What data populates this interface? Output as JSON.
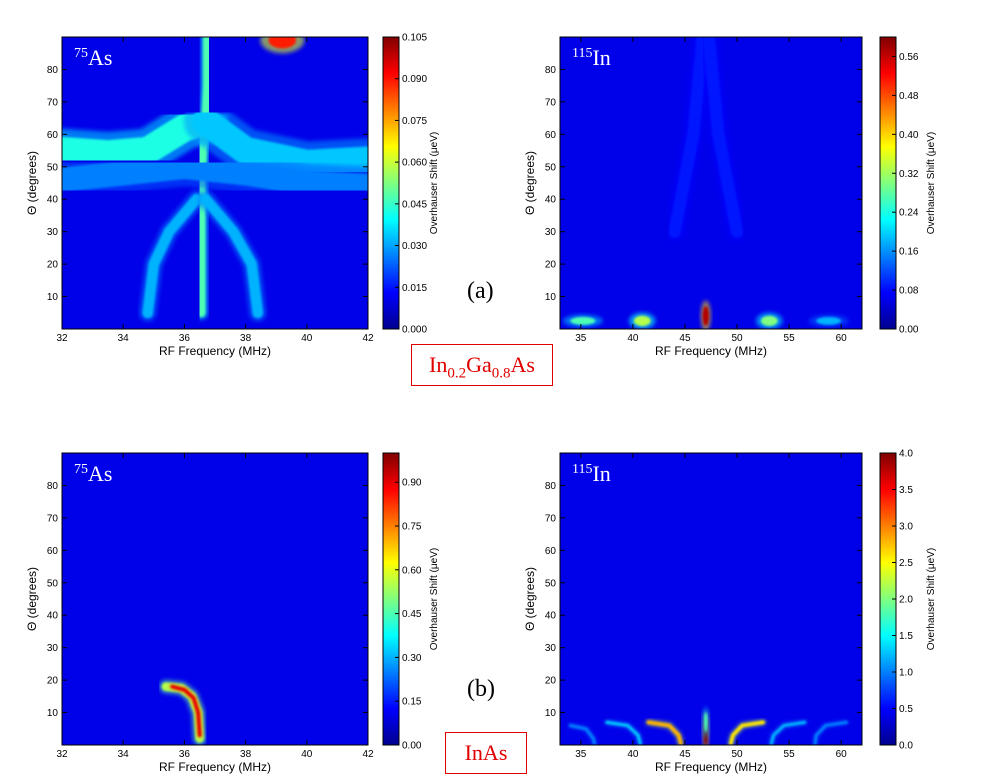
{
  "panel_labels": {
    "a": "(a)",
    "b": "(b)"
  },
  "materials": {
    "a": {
      "parts": [
        {
          "t": "In",
          "sub": false
        },
        {
          "t": "0.2",
          "sub": true
        },
        {
          "t": "Ga",
          "sub": false
        },
        {
          "t": "0.8",
          "sub": true
        },
        {
          "t": "As",
          "sub": false
        }
      ]
    },
    "b": {
      "parts": [
        {
          "t": "InAs",
          "sub": false
        }
      ]
    }
  },
  "colormap": "jet",
  "chart_data": [
    {
      "type": "heatmap",
      "nucleus": {
        "mass": "75",
        "symbol": "As"
      },
      "xlabel": "RF Frequency (MHz)",
      "ylabel": "Θ (degrees)",
      "colorbar_label": "Overhauser Shift (μeV)",
      "xlim": [
        32,
        42
      ],
      "ylim": [
        0,
        90
      ],
      "xticks": [
        32,
        34,
        36,
        38,
        40,
        42
      ],
      "yticks": [
        10,
        20,
        30,
        40,
        50,
        60,
        70,
        80
      ],
      "colorbar_range": [
        0,
        0.105
      ],
      "colorbar_ticks": [
        "0.000",
        "0.015",
        "0.030",
        "0.045",
        "0.060",
        "0.075",
        "0.090",
        "0.105"
      ],
      "features": [
        {
          "kind": "curve",
          "points": [
            [
              36.75,
              90
            ],
            [
              36.75,
              75
            ],
            [
              36.7,
              65
            ],
            [
              36.6,
              55
            ],
            [
              36.55,
              45
            ],
            [
              36.55,
              35
            ],
            [
              36.55,
              20
            ],
            [
              36.55,
              5
            ]
          ],
          "width": 0.28,
          "level": 0.45
        },
        {
          "kind": "curve",
          "points": [
            [
              36.55,
              40
            ],
            [
              36.55,
              30
            ],
            [
              36.55,
              20
            ],
            [
              36.55,
              12
            ],
            [
              36.55,
              3
            ]
          ],
          "width": 0.22,
          "level": 0.95
        },
        {
          "kind": "curve",
          "points": [
            [
              32,
              55
            ],
            [
              33.5,
              54
            ],
            [
              34.8,
              55
            ],
            [
              36,
              62
            ],
            [
              36.7,
              64
            ]
          ],
          "width": 0.9,
          "level": 0.4
        },
        {
          "kind": "curve",
          "points": [
            [
              36.7,
              64
            ],
            [
              38,
              55
            ],
            [
              40,
              51
            ],
            [
              42,
              52
            ]
          ],
          "width": 0.9,
          "level": 0.32
        },
        {
          "kind": "curve",
          "points": [
            [
              32,
              46
            ],
            [
              34,
              48
            ],
            [
              36,
              50
            ],
            [
              38,
              48
            ],
            [
              40,
              45
            ],
            [
              42,
              44
            ]
          ],
          "width": 0.8,
          "level": 0.25
        },
        {
          "kind": "curve",
          "points": [
            [
              36.4,
              40
            ],
            [
              35.5,
              30
            ],
            [
              35.0,
              20
            ],
            [
              34.8,
              5
            ]
          ],
          "width": 0.35,
          "level": 0.3
        },
        {
          "kind": "curve",
          "points": [
            [
              36.7,
              40
            ],
            [
              37.6,
              30
            ],
            [
              38.2,
              20
            ],
            [
              38.4,
              5
            ]
          ],
          "width": 0.35,
          "level": 0.3
        },
        {
          "kind": "blob",
          "x": 39.2,
          "y": 89,
          "rx": 0.45,
          "ry": 2.5,
          "level": 0.85
        }
      ]
    },
    {
      "type": "heatmap",
      "nucleus": {
        "mass": "115",
        "symbol": "In"
      },
      "xlabel": "RF Frequency (MHz)",
      "ylabel": "Θ (degrees)",
      "colorbar_label": "Overhauser Shift (μeV)",
      "xlim": [
        33,
        62
      ],
      "ylim": [
        0,
        90
      ],
      "xticks": [
        35,
        40,
        45,
        50,
        55,
        60
      ],
      "yticks": [
        10,
        20,
        30,
        40,
        50,
        60,
        70,
        80
      ],
      "colorbar_range": [
        0,
        0.6
      ],
      "colorbar_ticks": [
        "0.00",
        "0.08",
        "0.16",
        "0.24",
        "0.32",
        "0.40",
        "0.48",
        "0.56"
      ],
      "features": [
        {
          "kind": "curve",
          "points": [
            [
              47,
              90
            ],
            [
              47,
              60
            ],
            [
              47,
              30
            ],
            [
              47,
              3
            ]
          ],
          "width": 0.35,
          "level": 0.35
        },
        {
          "kind": "curve",
          "points": [
            [
              44,
              30
            ],
            [
              45.8,
              60
            ],
            [
              46.7,
              90
            ]
          ],
          "width": 1.2,
          "level": 0.15
        },
        {
          "kind": "curve",
          "points": [
            [
              50,
              30
            ],
            [
              48.2,
              60
            ],
            [
              47.3,
              90
            ]
          ],
          "width": 1.2,
          "level": 0.15
        },
        {
          "kind": "blob",
          "x": 47,
          "y": 4,
          "rx": 0.3,
          "ry": 3,
          "level": 0.95
        },
        {
          "kind": "blob",
          "x": 35.2,
          "y": 2.5,
          "rx": 1.2,
          "ry": 1.2,
          "level": 0.45
        },
        {
          "kind": "blob",
          "x": 40.9,
          "y": 2.5,
          "rx": 0.8,
          "ry": 1.6,
          "level": 0.55
        },
        {
          "kind": "blob",
          "x": 53.1,
          "y": 2.5,
          "rx": 0.8,
          "ry": 1.6,
          "level": 0.5
        },
        {
          "kind": "blob",
          "x": 58.8,
          "y": 2.5,
          "rx": 1.2,
          "ry": 1.2,
          "level": 0.3
        }
      ]
    },
    {
      "type": "heatmap",
      "nucleus": {
        "mass": "75",
        "symbol": "As"
      },
      "xlabel": "RF Frequency (MHz)",
      "ylabel": "Θ (degrees)",
      "colorbar_label": "Overhauser Shift (μeV)",
      "xlim": [
        32,
        42
      ],
      "ylim": [
        0,
        90
      ],
      "xticks": [
        32,
        34,
        36,
        38,
        40,
        42
      ],
      "yticks": [
        10,
        20,
        30,
        40,
        50,
        60,
        70,
        80
      ],
      "colorbar_range": [
        0,
        1.0
      ],
      "colorbar_ticks": [
        "0.00",
        "0.15",
        "0.30",
        "0.45",
        "0.60",
        "0.75",
        "0.90"
      ],
      "features": [
        {
          "kind": "curve",
          "points": [
            [
              35.4,
              18
            ],
            [
              35.9,
              17.5
            ],
            [
              36.25,
              15
            ],
            [
              36.45,
              10
            ],
            [
              36.5,
              2
            ]
          ],
          "width": 0.28,
          "level": 0.55
        },
        {
          "kind": "curve",
          "points": [
            [
              35.6,
              18
            ],
            [
              36.0,
              17
            ],
            [
              36.3,
              14.5
            ],
            [
              36.45,
              10
            ],
            [
              36.5,
              3
            ]
          ],
          "width": 0.12,
          "level": 0.9
        }
      ]
    },
    {
      "type": "heatmap",
      "nucleus": {
        "mass": "115",
        "symbol": "In"
      },
      "xlabel": "RF Frequency (MHz)",
      "ylabel": "Θ (degrees)",
      "colorbar_label": "Overhauser Shift (μeV)",
      "xlim": [
        33,
        62
      ],
      "ylim": [
        0,
        90
      ],
      "xticks": [
        35,
        40,
        45,
        50,
        55,
        60
      ],
      "yticks": [
        10,
        20,
        30,
        40,
        50,
        60,
        70,
        80
      ],
      "colorbar_range": [
        0,
        4.0
      ],
      "colorbar_ticks": [
        "0.0",
        "0.5",
        "1.0",
        "1.5",
        "2.0",
        "2.5",
        "3.0",
        "3.5",
        "4.0"
      ],
      "features": [
        {
          "kind": "curve",
          "points": [
            [
              34,
              7
            ],
            [
              62,
              7
            ]
          ],
          "width": 0.8,
          "level": 0.22
        },
        {
          "kind": "curve",
          "points": [
            [
              41.5,
              7
            ],
            [
              43.5,
              6
            ],
            [
              44.4,
              3
            ],
            [
              44.6,
              0.5
            ]
          ],
          "width": 0.35,
          "level": 0.7
        },
        {
          "kind": "curve",
          "points": [
            [
              52.5,
              7
            ],
            [
              50.5,
              6
            ],
            [
              49.6,
              3
            ],
            [
              49.4,
              0.5
            ]
          ],
          "width": 0.35,
          "level": 0.65
        },
        {
          "kind": "curve",
          "points": [
            [
              37.5,
              7
            ],
            [
              39.5,
              6
            ],
            [
              40.5,
              3
            ],
            [
              40.7,
              0.5
            ]
          ],
          "width": 0.3,
          "level": 0.32
        },
        {
          "kind": "curve",
          "points": [
            [
              56.5,
              7
            ],
            [
              54.5,
              6
            ],
            [
              53.5,
              3
            ],
            [
              53.3,
              0.5
            ]
          ],
          "width": 0.3,
          "level": 0.3
        },
        {
          "kind": "curve",
          "points": [
            [
              34,
              6
            ],
            [
              35.5,
              5
            ],
            [
              36.2,
              2
            ],
            [
              36.3,
              0.5
            ]
          ],
          "width": 0.3,
          "level": 0.25
        },
        {
          "kind": "curve",
          "points": [
            [
              60.5,
              7
            ],
            [
              58.5,
              6
            ],
            [
              57.6,
              3
            ],
            [
              57.5,
              0.5
            ]
          ],
          "width": 0.3,
          "level": 0.25
        },
        {
          "kind": "blob",
          "x": 47,
          "y": 4,
          "rx": 0.18,
          "ry": 4,
          "level": 1.0
        },
        {
          "kind": "blob",
          "x": 47,
          "y": 7,
          "rx": 0.15,
          "ry": 3,
          "level": 0.45
        }
      ]
    }
  ]
}
